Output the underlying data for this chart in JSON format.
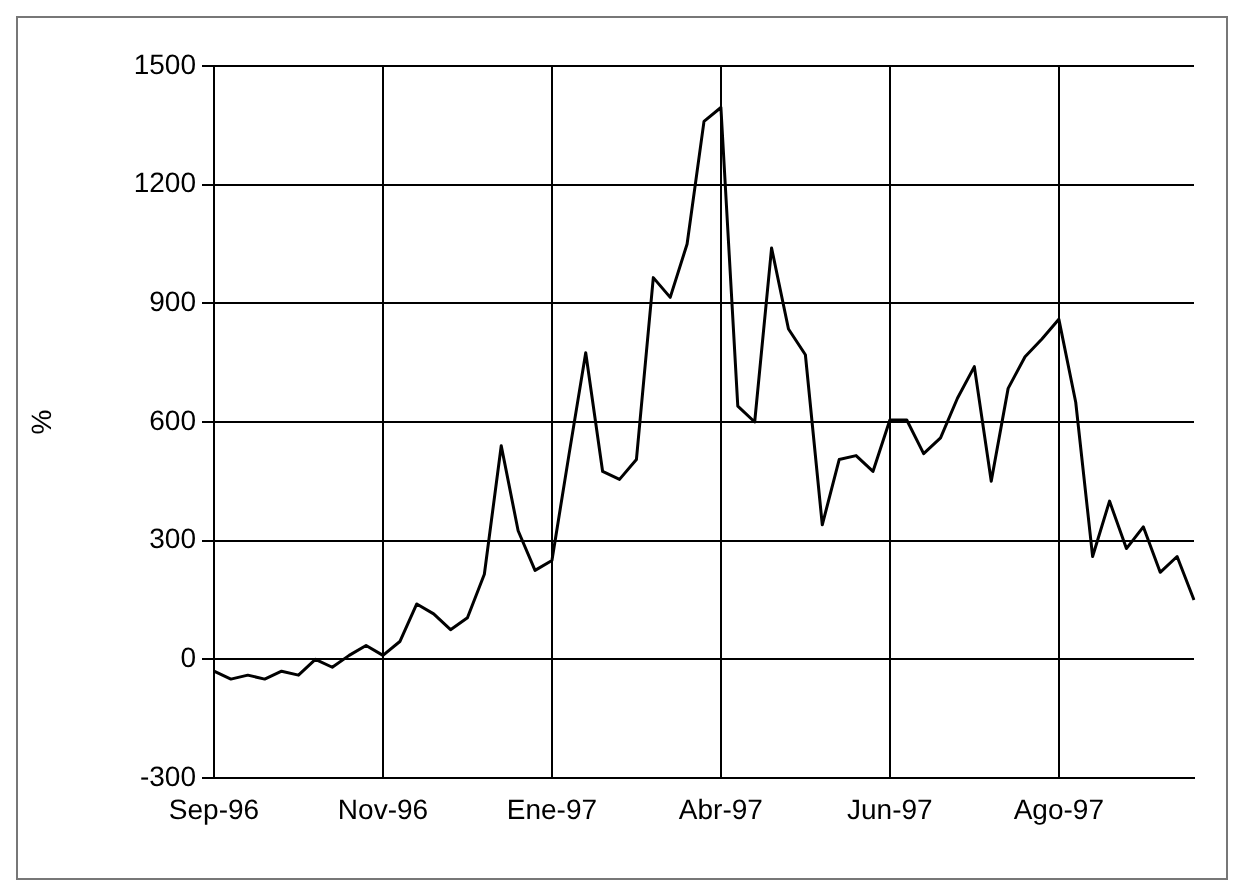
{
  "chart_data": {
    "type": "line",
    "ylabel": "%",
    "categories": [
      "Sep-96",
      null,
      null,
      null,
      null,
      null,
      null,
      null,
      null,
      null,
      "Nov-96",
      null,
      null,
      null,
      null,
      null,
      null,
      null,
      null,
      null,
      "Ene-97",
      null,
      null,
      null,
      null,
      null,
      null,
      null,
      null,
      null,
      "Abr-97",
      null,
      null,
      null,
      null,
      null,
      null,
      null,
      null,
      null,
      "Jun-97",
      null,
      null,
      null,
      null,
      null,
      null,
      null,
      null,
      null,
      "Ago-97",
      null,
      null,
      null,
      null,
      null,
      null,
      null,
      null
    ],
    "series": [
      {
        "color": "#000000",
        "values": [
          -30,
          -50,
          -40,
          -50,
          -30,
          -40,
          0,
          -20,
          10,
          35,
          10,
          45,
          140,
          115,
          75,
          105,
          215,
          540,
          325,
          225,
          250,
          515,
          775,
          475,
          455,
          505,
          965,
          915,
          1050,
          1360,
          1395,
          640,
          600,
          1040,
          835,
          770,
          340,
          505,
          515,
          475,
          605,
          605,
          520,
          560,
          660,
          740,
          450,
          685,
          765,
          810,
          860,
          650,
          260,
          400,
          280,
          335,
          220,
          260,
          150
        ]
      }
    ],
    "ylim": [
      -300,
      1500
    ],
    "yticks": [
      -300,
      0,
      300,
      600,
      900,
      1200,
      1500
    ],
    "grid": true,
    "legend": false,
    "marker": "none",
    "line_style": "solid"
  }
}
